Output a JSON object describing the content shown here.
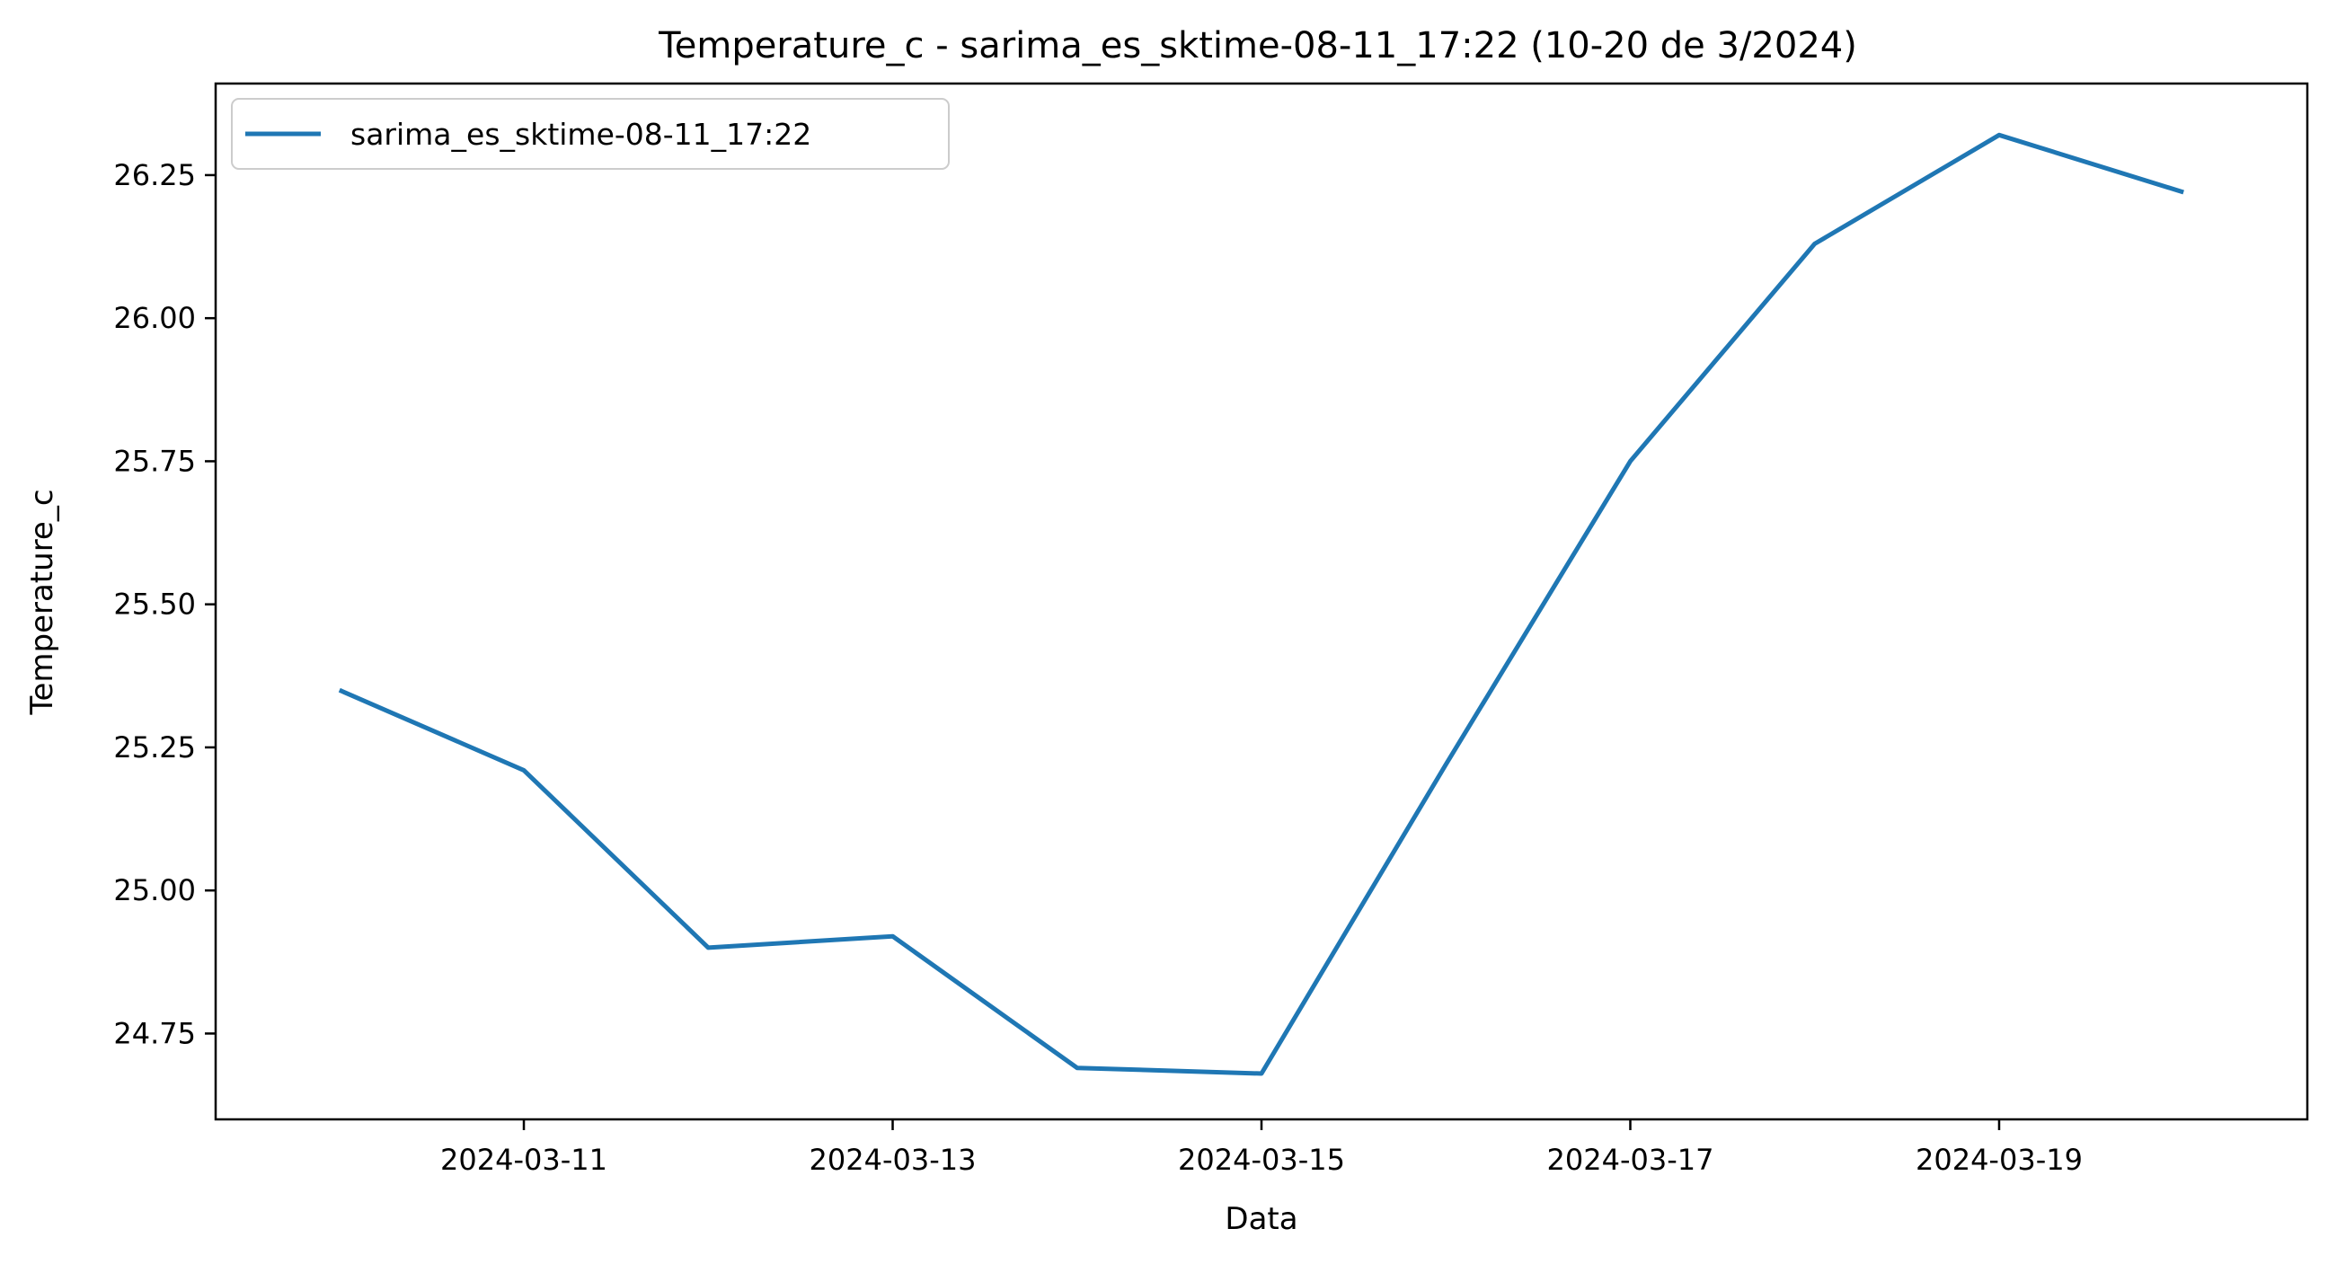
{
  "chart_data": {
    "type": "line",
    "title": "Temperature_c - sarima_es_sktime-08-11_17:22 (10-20 de 3/2024)",
    "xlabel": "Data",
    "ylabel": "Temperature_c",
    "x": [
      "2024-03-10",
      "2024-03-11",
      "2024-03-12",
      "2024-03-13",
      "2024-03-14",
      "2024-03-15",
      "2024-03-16",
      "2024-03-17",
      "2024-03-18",
      "2024-03-19",
      "2024-03-20"
    ],
    "xticks": [
      "2024-03-11",
      "2024-03-13",
      "2024-03-15",
      "2024-03-17",
      "2024-03-19"
    ],
    "xlim": [
      "2024-03-09T07:53:16",
      "2024-03-20T16:06:43"
    ],
    "ylim": [
      24.6,
      26.41
    ],
    "yticks": [
      24.75,
      25.0,
      25.25,
      25.5,
      25.75,
      26.0,
      26.25
    ],
    "series": [
      {
        "name": "sarima_es_sktime-08-11_17:22",
        "color": "#1f77b4",
        "values": [
          25.35,
          25.21,
          24.9,
          24.92,
          24.69,
          24.68,
          25.22,
          25.75,
          26.13,
          26.32,
          26.22
        ]
      }
    ],
    "grid": false,
    "legend": "top-left"
  }
}
